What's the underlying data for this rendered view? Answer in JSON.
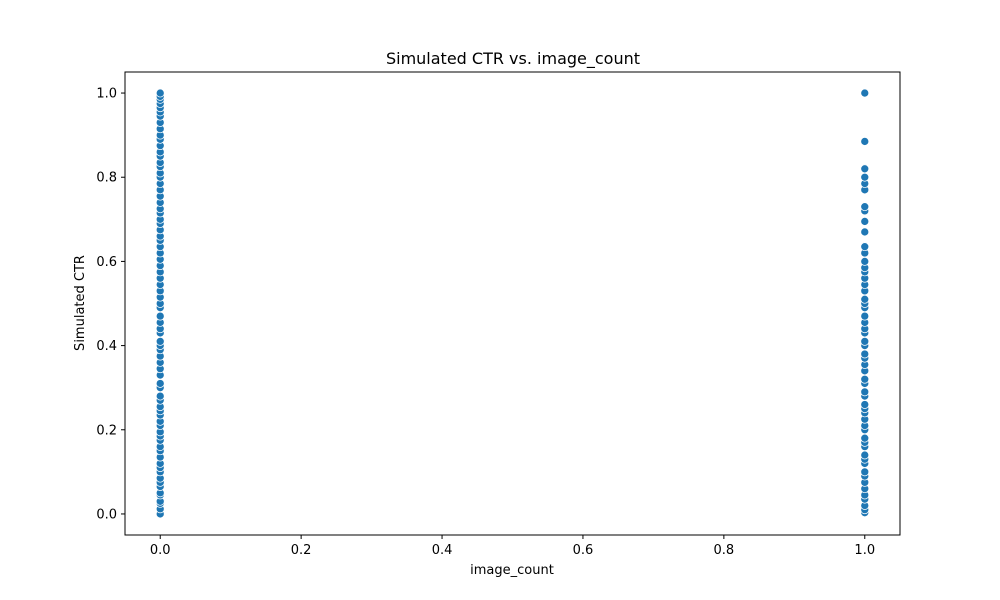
{
  "chart_data": {
    "type": "scatter",
    "title": "Simulated CTR vs. image_count",
    "xlabel": "image_count",
    "ylabel": "Simulated CTR",
    "xlim": [
      -0.05,
      1.05
    ],
    "ylim": [
      -0.05,
      1.05
    ],
    "xticks": [
      0.0,
      0.2,
      0.4,
      0.6,
      0.8,
      1.0
    ],
    "xtick_labels": [
      "0.0",
      "0.2",
      "0.4",
      "0.6",
      "0.8",
      "1.0"
    ],
    "yticks": [
      0.0,
      0.2,
      0.4,
      0.6,
      0.8,
      1.0
    ],
    "ytick_labels": [
      "0.0",
      "0.2",
      "0.4",
      "0.6",
      "0.8",
      "1.0"
    ],
    "grid": false,
    "marker_color": "#1f77b4",
    "series": [
      {
        "name": "image_count = 0",
        "x": 0.0,
        "y": [
          0.0,
          0.012,
          0.025,
          0.03,
          0.045,
          0.05,
          0.065,
          0.075,
          0.085,
          0.1,
          0.11,
          0.12,
          0.135,
          0.15,
          0.16,
          0.175,
          0.185,
          0.195,
          0.21,
          0.22,
          0.235,
          0.245,
          0.255,
          0.27,
          0.28,
          0.3,
          0.31,
          0.33,
          0.345,
          0.36,
          0.375,
          0.39,
          0.4,
          0.41,
          0.43,
          0.44,
          0.455,
          0.47,
          0.49,
          0.5,
          0.515,
          0.53,
          0.545,
          0.56,
          0.575,
          0.59,
          0.605,
          0.62,
          0.635,
          0.65,
          0.66,
          0.675,
          0.69,
          0.7,
          0.715,
          0.725,
          0.74,
          0.755,
          0.77,
          0.785,
          0.8,
          0.81,
          0.825,
          0.835,
          0.85,
          0.86,
          0.875,
          0.89,
          0.9,
          0.915,
          0.93,
          0.945,
          0.955,
          0.965,
          0.975,
          0.985,
          0.992,
          1.0
        ]
      },
      {
        "name": "image_count = 1",
        "x": 1.0,
        "y": [
          0.003,
          0.01,
          0.02,
          0.035,
          0.045,
          0.06,
          0.075,
          0.09,
          0.1,
          0.12,
          0.13,
          0.14,
          0.16,
          0.17,
          0.18,
          0.2,
          0.21,
          0.225,
          0.24,
          0.25,
          0.26,
          0.28,
          0.29,
          0.31,
          0.32,
          0.34,
          0.355,
          0.37,
          0.38,
          0.4,
          0.41,
          0.43,
          0.44,
          0.455,
          0.47,
          0.49,
          0.5,
          0.51,
          0.53,
          0.545,
          0.56,
          0.575,
          0.585,
          0.6,
          0.62,
          0.635,
          0.67,
          0.695,
          0.72,
          0.73,
          0.77,
          0.785,
          0.8,
          0.82,
          0.885,
          1.0
        ]
      }
    ]
  }
}
